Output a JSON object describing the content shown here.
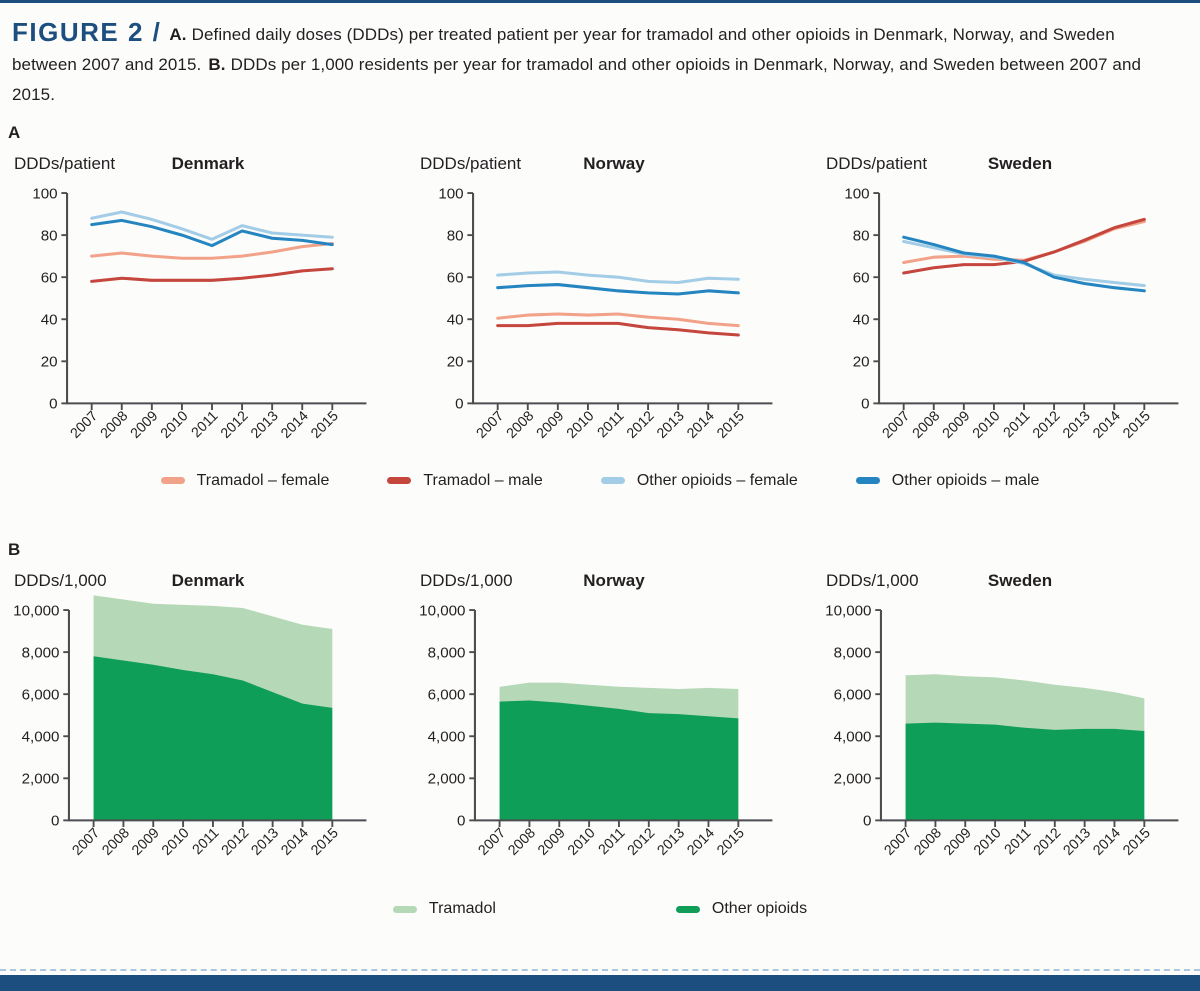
{
  "caption": {
    "figure_label": "FIGURE 2 /",
    "part_a_label": "A.",
    "part_a_text": "Defined daily doses (DDDs) per treated patient per year for tramadol and other opioids in Denmark, Norway, and Sweden between 2007 and 2015.",
    "part_b_label": "B.",
    "part_b_text": "DDDs per 1,000 residents per year for tramadol and other opioids in Denmark, Norway, and Sweden between 2007 and 2015."
  },
  "panels": {
    "a_label": "A",
    "b_label": "B"
  },
  "colors": {
    "accent_navy": "#1d4e80",
    "text": "#231f20",
    "axis": "#4d4d4f",
    "tramadol_female": "#f2a289",
    "tramadol_male": "#c5463c",
    "other_female": "#a3cde6",
    "other_male": "#2585c0",
    "tramadol_green": "#b5d8b6",
    "opioids_green": "#0f9e58",
    "dashed_rule": "#adc6e0"
  },
  "legend_a": [
    {
      "label": "Tramadol – female",
      "color": "tramadol_female"
    },
    {
      "label": "Tramadol – male",
      "color": "tramadol_male"
    },
    {
      "label": "Other opioids – female",
      "color": "other_female"
    },
    {
      "label": "Other opioids – male",
      "color": "other_male"
    }
  ],
  "legend_b": [
    {
      "label": "Tramadol",
      "color": "tramadol_green"
    },
    {
      "label": "Other opioids",
      "color": "opioids_green"
    }
  ],
  "chart_data": [
    {
      "panel": "A",
      "type": "line",
      "title": "Denmark",
      "ylabel": "DDDs/patient",
      "axis_x": 56,
      "ymax": 100,
      "ylim": [
        0,
        100
      ],
      "grid": false,
      "yticks": [
        {
          "v": 0,
          "label": "0"
        },
        {
          "v": 20,
          "label": "20"
        },
        {
          "v": 40,
          "label": "40"
        },
        {
          "v": 60,
          "label": "60"
        },
        {
          "v": 80,
          "label": "80"
        },
        {
          "v": 100,
          "label": "100"
        }
      ],
      "categories": [
        "2007",
        "2008",
        "2009",
        "2010",
        "2011",
        "2012",
        "2013",
        "2014",
        "2015"
      ],
      "series": [
        {
          "name": "Tramadol – female",
          "color": "tramadol_female",
          "values": [
            70,
            71.5,
            70,
            69,
            69,
            70,
            72,
            74.5,
            76
          ]
        },
        {
          "name": "Tramadol – male",
          "color": "tramadol_male",
          "values": [
            58,
            59.5,
            58.5,
            58.5,
            58.5,
            59.5,
            61,
            63,
            64
          ]
        },
        {
          "name": "Other opioids – female",
          "color": "other_female",
          "values": [
            88,
            91,
            87.5,
            83,
            78,
            84.5,
            81,
            80,
            79
          ]
        },
        {
          "name": "Other opioids – male",
          "color": "other_male",
          "values": [
            85,
            87,
            84,
            80,
            75,
            82,
            78.5,
            77.5,
            75.5
          ]
        }
      ]
    },
    {
      "panel": "A",
      "type": "line",
      "title": "Norway",
      "ylabel": "DDDs/patient",
      "axis_x": 56,
      "ymax": 100,
      "ylim": [
        0,
        100
      ],
      "grid": false,
      "yticks": [
        {
          "v": 0,
          "label": "0"
        },
        {
          "v": 20,
          "label": "20"
        },
        {
          "v": 40,
          "label": "40"
        },
        {
          "v": 60,
          "label": "60"
        },
        {
          "v": 80,
          "label": "80"
        },
        {
          "v": 100,
          "label": "100"
        }
      ],
      "categories": [
        "2007",
        "2008",
        "2009",
        "2010",
        "2011",
        "2012",
        "2013",
        "2014",
        "2015"
      ],
      "series": [
        {
          "name": "Tramadol – female",
          "color": "tramadol_female",
          "values": [
            40.5,
            42,
            42.5,
            42,
            42.5,
            41,
            40,
            38,
            37
          ]
        },
        {
          "name": "Tramadol – male",
          "color": "tramadol_male",
          "values": [
            37,
            37,
            38,
            38,
            38,
            36,
            35,
            33.5,
            32.5
          ]
        },
        {
          "name": "Other opioids – female",
          "color": "other_female",
          "values": [
            61,
            62,
            62.5,
            61,
            60,
            58,
            57.5,
            59.5,
            59
          ]
        },
        {
          "name": "Other opioids – male",
          "color": "other_male",
          "values": [
            55,
            56,
            56.5,
            55,
            53.5,
            52.5,
            52,
            53.5,
            52.5
          ]
        }
      ]
    },
    {
      "panel": "A",
      "type": "line",
      "title": "Sweden",
      "ylabel": "DDDs/patient",
      "axis_x": 56,
      "ymax": 100,
      "ylim": [
        0,
        100
      ],
      "grid": false,
      "yticks": [
        {
          "v": 0,
          "label": "0"
        },
        {
          "v": 20,
          "label": "20"
        },
        {
          "v": 40,
          "label": "40"
        },
        {
          "v": 60,
          "label": "60"
        },
        {
          "v": 80,
          "label": "80"
        },
        {
          "v": 100,
          "label": "100"
        }
      ],
      "categories": [
        "2007",
        "2008",
        "2009",
        "2010",
        "2011",
        "2012",
        "2013",
        "2014",
        "2015"
      ],
      "series": [
        {
          "name": "Tramadol – female",
          "color": "tramadol_female",
          "values": [
            67,
            69.5,
            70,
            68.5,
            68,
            72,
            77,
            83,
            86.5
          ]
        },
        {
          "name": "Tramadol – male",
          "color": "tramadol_male",
          "values": [
            62,
            64.5,
            66,
            66,
            67.5,
            72,
            77.5,
            83.5,
            87.5
          ]
        },
        {
          "name": "Other opioids – female",
          "color": "other_female",
          "values": [
            77,
            74,
            71,
            69.5,
            66.5,
            61,
            59,
            57.5,
            56
          ]
        },
        {
          "name": "Other opioids – male",
          "color": "other_male",
          "values": [
            79,
            75.5,
            71.5,
            70,
            67,
            60,
            57,
            55,
            53.5
          ]
        }
      ]
    },
    {
      "panel": "B",
      "type": "area",
      "title": "Denmark",
      "ylabel": "DDDs/1,000",
      "axis_x": 58,
      "ymax": 10000,
      "ylim": [
        0,
        10000
      ],
      "grid": false,
      "stacked": true,
      "yticks": [
        {
          "v": 0,
          "label": "0"
        },
        {
          "v": 2000,
          "label": "2,000"
        },
        {
          "v": 4000,
          "label": "4,000"
        },
        {
          "v": 6000,
          "label": "6,000"
        },
        {
          "v": 8000,
          "label": "8,000"
        },
        {
          "v": 10000,
          "label": "10,000"
        }
      ],
      "categories": [
        "2007",
        "2008",
        "2009",
        "2010",
        "2011",
        "2012",
        "2013",
        "2014",
        "2015"
      ],
      "series": [
        {
          "name": "Other opioids",
          "color": "opioids_green",
          "values": [
            7800,
            7600,
            7400,
            7150,
            6950,
            6650,
            6100,
            5550,
            5350
          ]
        },
        {
          "name": "Tramadol",
          "color": "tramadol_green",
          "values": [
            2900,
            2900,
            2900,
            3100,
            3250,
            3450,
            3600,
            3750,
            3750
          ]
        }
      ]
    },
    {
      "panel": "B",
      "type": "area",
      "title": "Norway",
      "ylabel": "DDDs/1,000",
      "axis_x": 58,
      "ymax": 10000,
      "ylim": [
        0,
        10000
      ],
      "grid": false,
      "stacked": true,
      "yticks": [
        {
          "v": 0,
          "label": "0"
        },
        {
          "v": 2000,
          "label": "2,000"
        },
        {
          "v": 4000,
          "label": "4,000"
        },
        {
          "v": 6000,
          "label": "6,000"
        },
        {
          "v": 8000,
          "label": "8,000"
        },
        {
          "v": 10000,
          "label": "10,000"
        }
      ],
      "categories": [
        "2007",
        "2008",
        "2009",
        "2010",
        "2011",
        "2012",
        "2013",
        "2014",
        "2015"
      ],
      "series": [
        {
          "name": "Other opioids",
          "color": "opioids_green",
          "values": [
            5650,
            5700,
            5600,
            5450,
            5300,
            5100,
            5050,
            4950,
            4850
          ]
        },
        {
          "name": "Tramadol",
          "color": "tramadol_green",
          "values": [
            700,
            850,
            950,
            1000,
            1050,
            1200,
            1200,
            1350,
            1400
          ]
        }
      ]
    },
    {
      "panel": "B",
      "type": "area",
      "title": "Sweden",
      "ylabel": "DDDs/1,000",
      "axis_x": 58,
      "ymax": 10000,
      "ylim": [
        0,
        10000
      ],
      "grid": false,
      "stacked": true,
      "yticks": [
        {
          "v": 0,
          "label": "0"
        },
        {
          "v": 2000,
          "label": "2,000"
        },
        {
          "v": 4000,
          "label": "4,000"
        },
        {
          "v": 6000,
          "label": "6,000"
        },
        {
          "v": 8000,
          "label": "8,000"
        },
        {
          "v": 10000,
          "label": "10,000"
        }
      ],
      "categories": [
        "2007",
        "2008",
        "2009",
        "2010",
        "2011",
        "2012",
        "2013",
        "2014",
        "2015"
      ],
      "series": [
        {
          "name": "Other opioids",
          "color": "opioids_green",
          "values": [
            4600,
            4650,
            4600,
            4550,
            4400,
            4300,
            4350,
            4350,
            4250
          ]
        },
        {
          "name": "Tramadol",
          "color": "tramadol_green",
          "values": [
            2300,
            2300,
            2250,
            2250,
            2250,
            2150,
            1950,
            1750,
            1550
          ]
        }
      ]
    }
  ]
}
